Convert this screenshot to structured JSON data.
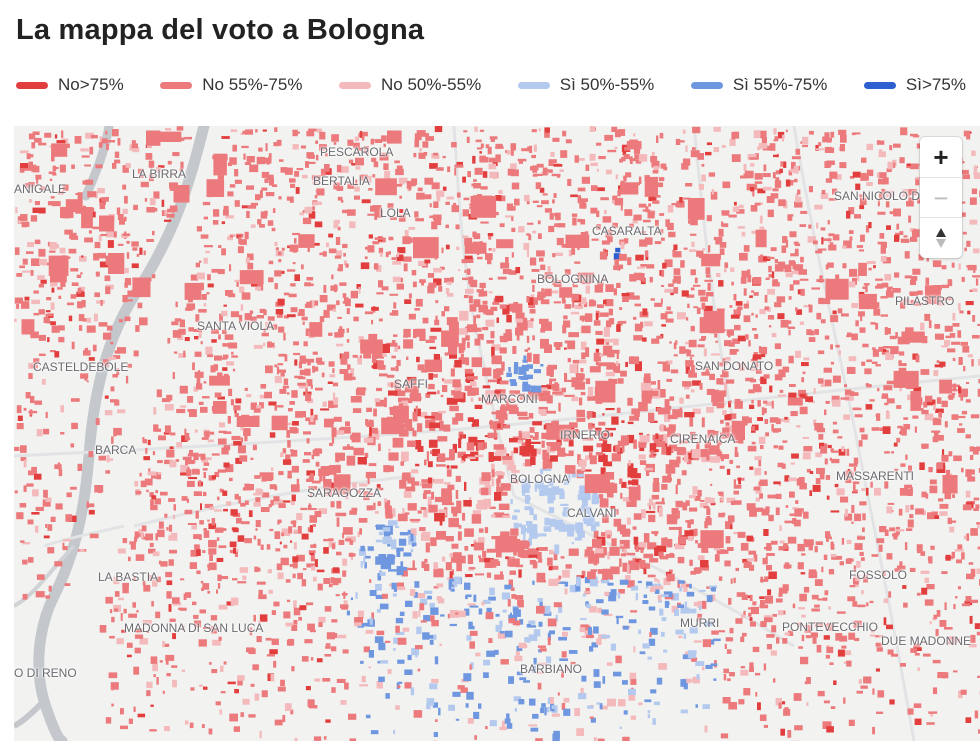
{
  "title": "La mappa del voto a Bologna",
  "legend": [
    {
      "label": "No>75%",
      "color": "#e23e3e"
    },
    {
      "label": "No 55%-75%",
      "color": "#ec7a7c"
    },
    {
      "label": "No 50%-55%",
      "color": "#f3b9bb"
    },
    {
      "label": "Sì 50%-55%",
      "color": "#b3c9ee"
    },
    {
      "label": "Sì 55%-75%",
      "color": "#6f97e0"
    },
    {
      "label": "Sì>75%",
      "color": "#2d5fd1"
    }
  ],
  "places": [
    {
      "name": "PESCAROLA"
    },
    {
      "name": "BERTALIA"
    },
    {
      "name": "LA BIRRA"
    },
    {
      "name": "ANIGALE"
    },
    {
      "name": "LOLA"
    },
    {
      "name": "CASARALTA"
    },
    {
      "name": "BOLOGNINA"
    },
    {
      "name": "SAN NICOLO DI V"
    },
    {
      "name": "PILASTRO"
    },
    {
      "name": "SANTA VIOLA"
    },
    {
      "name": "CASTELDEBOLE"
    },
    {
      "name": "SAN DONATO"
    },
    {
      "name": "SAFFI"
    },
    {
      "name": "MARCONI"
    },
    {
      "name": "IRNERIO"
    },
    {
      "name": "CIRENAICA"
    },
    {
      "name": "BARCA"
    },
    {
      "name": "BOLOGNA"
    },
    {
      "name": "MASSARENTI"
    },
    {
      "name": "SARAGOZZA"
    },
    {
      "name": "CALVANI"
    },
    {
      "name": "LA BASTIA"
    },
    {
      "name": "FOSSOLO"
    },
    {
      "name": "MADONNA DI SAN LUCA"
    },
    {
      "name": "MURRI"
    },
    {
      "name": "PONTEVECCHIO"
    },
    {
      "name": "DUE MADONNE"
    },
    {
      "name": "O DI RENO"
    },
    {
      "name": "BARBIANO"
    }
  ],
  "controls": {
    "zoom_in": "+",
    "zoom_out": "−"
  }
}
